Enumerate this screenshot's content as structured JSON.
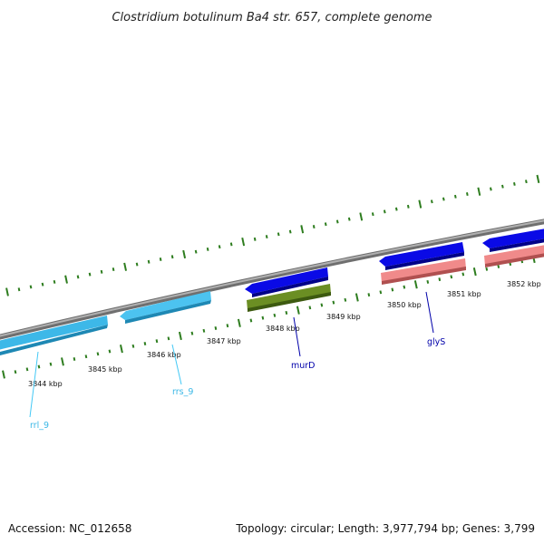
{
  "title": "Clostridium botulinum Ba4 str. 657, complete genome",
  "footer": {
    "accession": "Accession: NC_012658",
    "summary": "Topology: circular; Length: 3,977,794 bp; Genes: 3,799"
  },
  "colors": {
    "backbone": "#8a8a8a",
    "tick": "#2e7d1f",
    "rrna": "#42c8f5",
    "cds_blue": "#0a0ae6",
    "cds_green": "#6b8e23",
    "cds_pink": "#f08080"
  },
  "ticks": [
    {
      "id": "3844",
      "label": "3844 kbp"
    },
    {
      "id": "3845",
      "label": "3845 kbp"
    },
    {
      "id": "3846",
      "label": "3846 kbp"
    },
    {
      "id": "3847",
      "label": "3847 kbp"
    },
    {
      "id": "3848",
      "label": "3848 kbp"
    },
    {
      "id": "3849",
      "label": "3849 kbp"
    },
    {
      "id": "3850",
      "label": "3850 kbp"
    },
    {
      "id": "3851",
      "label": "3851 kbp"
    },
    {
      "id": "3852",
      "label": "3852 kbp"
    }
  ],
  "features": [
    {
      "id": "rrl9",
      "label": "rrl_9",
      "type": "rRNA"
    },
    {
      "id": "rrs9",
      "label": "rrs_9",
      "type": "rRNA"
    },
    {
      "id": "murD",
      "label": "murD",
      "type": "CDS"
    },
    {
      "id": "glyS",
      "label": "glyS",
      "type": "CDS"
    }
  ]
}
